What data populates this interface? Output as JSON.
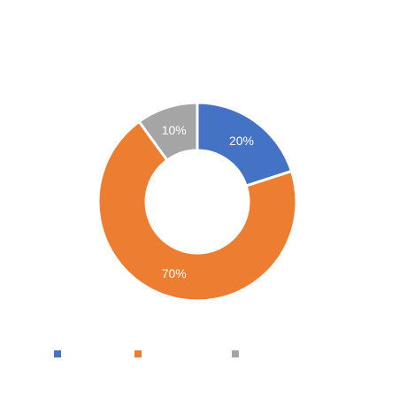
{
  "chart_data": {
    "type": "pie",
    "variant": "donut",
    "slices": [
      {
        "label": "",
        "value": 20,
        "display": "20%",
        "color": "#4472C4"
      },
      {
        "label": "",
        "value": 70,
        "display": "70%",
        "color": "#ED7D31"
      },
      {
        "label": "",
        "value": 10,
        "display": "10%",
        "color": "#A5A5A5"
      }
    ],
    "title": "",
    "legend_position": "bottom"
  }
}
